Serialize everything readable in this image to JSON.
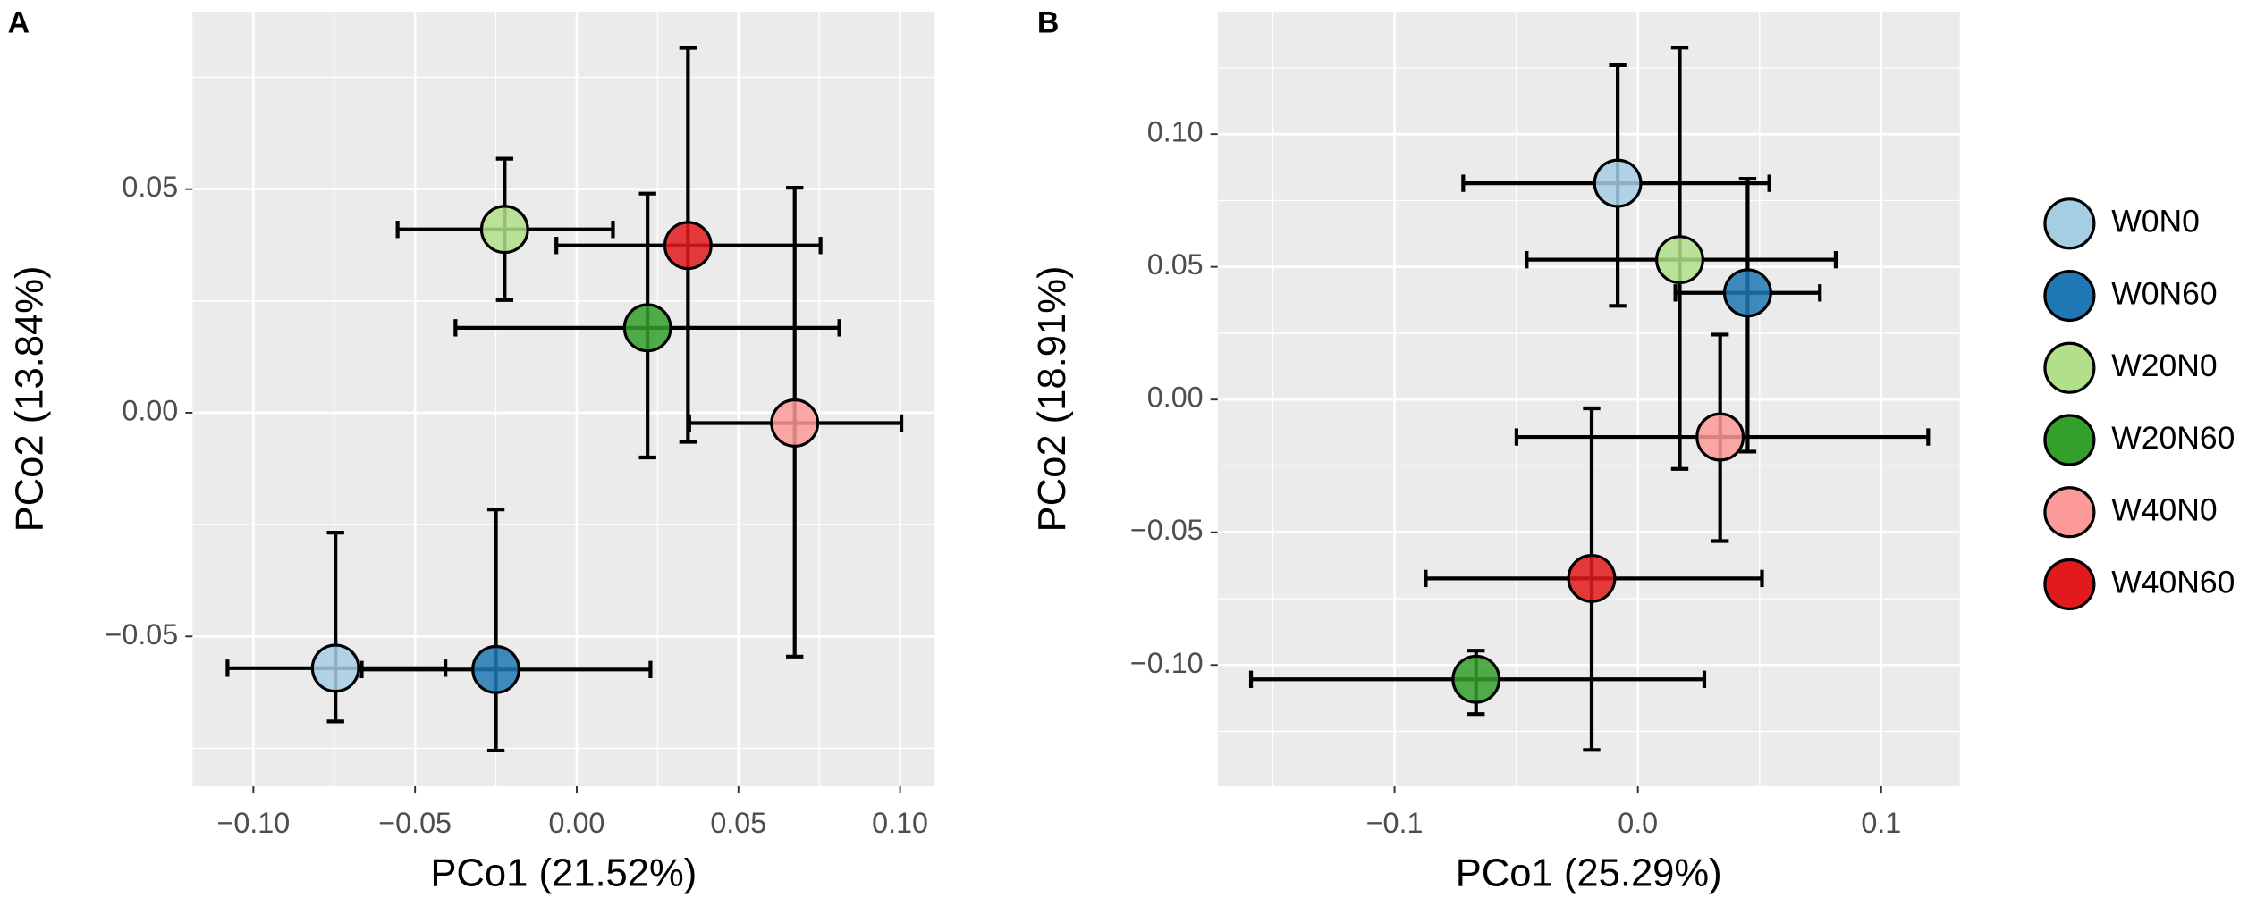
{
  "chart_data": [
    {
      "type": "scatter",
      "panel": "A",
      "xlabel": "PCo1 (21.52%)",
      "ylabel": "PCo2 (13.84%)",
      "xlim": [
        -0.1188,
        0.1107
      ],
      "ylim": [
        -0.0835,
        0.0897
      ],
      "xticks": [
        {
          "value": -0.1,
          "label": "−0.10"
        },
        {
          "value": -0.05,
          "label": "−0.05"
        },
        {
          "value": 0,
          "label": "0.00"
        },
        0.05,
        {
          "value": 0.1,
          "label": "0.10"
        }
      ],
      "yticks": [
        {
          "value": -0.05,
          "label": "−0.05"
        },
        {
          "value": 0,
          "label": "0.00"
        },
        0.05
      ],
      "xminor": [
        -0.075,
        -0.025,
        0.025,
        0.075
      ],
      "yminor": [
        -0.075,
        -0.025,
        0.025,
        0.075
      ],
      "grid": true,
      "legend": false,
      "series": [
        {
          "name": "W0N0",
          "color": "#a6cee3",
          "x": [
            -0.0746
          ],
          "y": [
            -0.0571
          ],
          "x_range": [
            -0.108,
            -0.0406
          ],
          "y_range": [
            -0.069,
            -0.0268
          ]
        },
        {
          "name": "W0N60",
          "color": "#1f78b4",
          "x": [
            -0.025
          ],
          "y": [
            -0.0574
          ],
          "x_range": [
            -0.0665,
            0.0228
          ],
          "y_range": [
            -0.0755,
            -0.0216
          ]
        },
        {
          "name": "W20N0",
          "color": "#b2df8a",
          "x": [
            -0.0223
          ],
          "y": [
            0.041
          ],
          "x_range": [
            -0.0554,
            0.0112
          ],
          "y_range": [
            0.0252,
            0.0568
          ]
        },
        {
          "name": "W20N60",
          "color": "#33a02c",
          "x": [
            0.0219
          ],
          "y": [
            0.019
          ],
          "x_range": [
            -0.0375,
            0.0812
          ],
          "y_range": [
            -0.01,
            0.049
          ]
        },
        {
          "name": "W40N0",
          "color": "#fb9a99",
          "x": [
            0.0674
          ],
          "y": [
            -0.0023
          ],
          "x_range": [
            0.0348,
            0.1004
          ],
          "y_range": [
            -0.0545,
            0.0503
          ]
        },
        {
          "name": "W40N60",
          "color": "#e31a1c",
          "x": [
            0.0344
          ],
          "y": [
            0.0374
          ],
          "x_range": [
            -0.0063,
            0.0754
          ],
          "y_range": [
            -0.0065,
            0.0816
          ]
        }
      ]
    },
    {
      "type": "scatter",
      "panel": "B",
      "xlabel": "PCo1 (25.29%)",
      "ylabel": "PCo2 (18.91%)",
      "xlim": [
        -0.1727,
        0.1323
      ],
      "ylim": [
        -0.1457,
        0.1462
      ],
      "xticks": [
        {
          "value": -0.1,
          "label": "−0.1"
        },
        {
          "value": 0,
          "label": "0.0"
        },
        0.1
      ],
      "yticks": [
        {
          "value": -0.1,
          "label": "−0.10"
        },
        {
          "value": -0.05,
          "label": "−0.05"
        },
        {
          "value": 0,
          "label": "0.00"
        },
        0.05,
        {
          "value": 0.1,
          "label": "0.10"
        }
      ],
      "xminor": [
        -0.15,
        -0.05,
        0.05
      ],
      "yminor": [
        -0.125,
        -0.075,
        -0.025,
        0.025,
        0.075,
        0.125
      ],
      "grid": true,
      "legend": true,
      "series": [
        {
          "name": "W0N0",
          "color": "#a6cee3",
          "x": [
            -0.0083
          ],
          "y": [
            0.0815
          ],
          "x_range": [
            -0.0718,
            0.054
          ],
          "y_range": [
            0.0353,
            0.126
          ]
        },
        {
          "name": "W0N60",
          "color": "#1f78b4",
          "x": [
            0.0451
          ],
          "y": [
            0.0402
          ],
          "x_range": [
            0.0154,
            0.0748
          ],
          "y_range": [
            -0.0196,
            0.0832
          ]
        },
        {
          "name": "W20N0",
          "color": "#b2df8a",
          "x": [
            0.0172
          ],
          "y": [
            0.0527
          ],
          "x_range": [
            -0.0457,
            0.0813
          ],
          "y_range": [
            -0.0261,
            0.1326
          ]
        },
        {
          "name": "W20N60",
          "color": "#33a02c",
          "x": [
            -0.0665
          ],
          "y": [
            -0.1054
          ],
          "x_range": [
            -0.159,
            0.0273
          ],
          "y_range": [
            -0.1185,
            -0.0946
          ]
        },
        {
          "name": "W40N0",
          "color": "#fb9a99",
          "x": [
            0.0338
          ],
          "y": [
            -0.0141
          ],
          "x_range": [
            -0.0499,
            0.1193
          ],
          "y_range": [
            -0.0533,
            0.0245
          ]
        },
        {
          "name": "W40N60",
          "color": "#e31a1c",
          "x": [
            -0.019
          ],
          "y": [
            -0.0674
          ],
          "x_range": [
            -0.0872,
            0.051
          ],
          "y_range": [
            -0.132,
            -0.0033
          ]
        }
      ]
    }
  ]
}
